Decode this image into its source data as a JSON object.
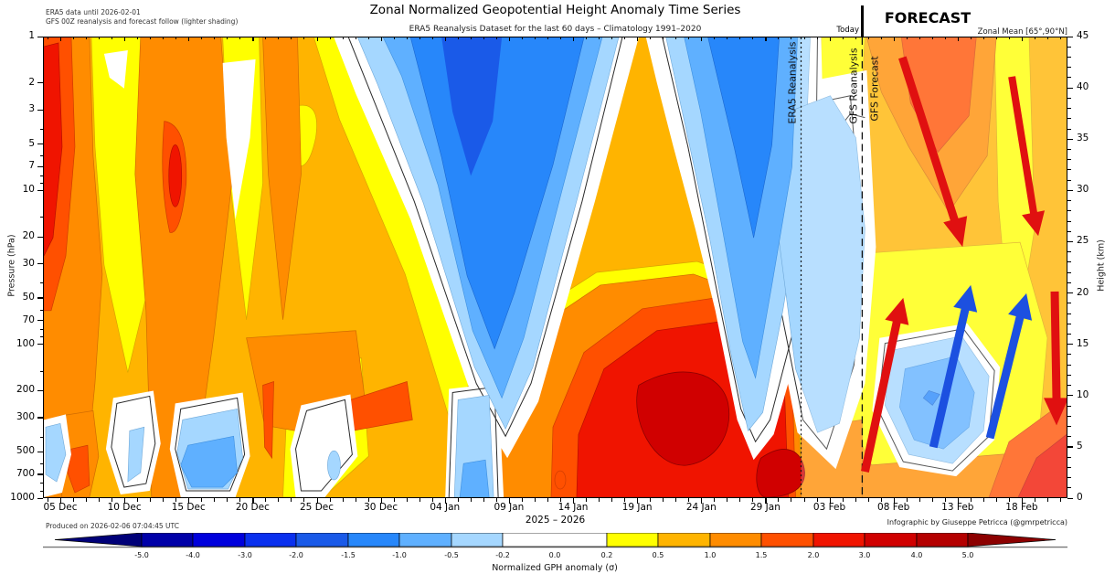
{
  "header": {
    "title": "Zonal Normalized Geopotential Height Anomaly Time Series",
    "subtitle": "ERA5 Reanalysis Dataset for the last 60 days – Climatology 1991–2020",
    "note1": "ERA5 data until 2026-02-01",
    "note2": "GFS 00Z reanalysis and forecast follow (lighter shading)",
    "forecast_label": "FORECAST",
    "today_label": "Today",
    "zonal_mean_label": "Zonal Mean [65°,90°N]"
  },
  "plot_annotations": {
    "era5_line_label": "ERA5 Reanalysis",
    "gfs_reanalysis_line_label": "GFS Reanalysis",
    "gfs_forecast_line_label": "GFS Forecast"
  },
  "axes": {
    "x_label_period": "2025 – 2026",
    "x_dates": [
      "05 Dec",
      "10 Dec",
      "15 Dec",
      "20 Dec",
      "25 Dec",
      "30 Dec",
      "04 Jan",
      "09 Jan",
      "14 Jan",
      "19 Jan",
      "24 Jan",
      "29 Jan",
      "03 Feb",
      "08 Feb",
      "13 Feb",
      "18 Feb"
    ],
    "pressure_label": "Pressure (hPa)",
    "pressure_ticks": [
      1,
      2,
      3,
      5,
      7,
      10,
      20,
      30,
      50,
      70,
      100,
      200,
      300,
      500,
      700,
      1000
    ],
    "height_label": "Height (km)",
    "height_ticks": [
      45,
      40,
      35,
      30,
      25,
      20,
      15,
      10,
      5,
      0
    ]
  },
  "footer": {
    "produced": "Produced on 2026-02-06 07:04:45 UTC",
    "credit": "Infographic by Giuseppe Petricca (@gmrpetricca)"
  },
  "colorbar": {
    "label": "Normalized GPH anomaly (σ)",
    "tick_labels": [
      "-5.0",
      "-4.0",
      "-3.0",
      "-2.0",
      "-1.5",
      "-1.0",
      "-0.5",
      "-0.2",
      "0.0",
      "0.2",
      "0.5",
      "1.0",
      "1.5",
      "2.0",
      "3.0",
      "4.0",
      "5.0"
    ],
    "segment_colors": [
      "#000078",
      "#0000A8",
      "#0000DC",
      "#0A30EE",
      "#1A5AE8",
      "#2787FA",
      "#5FB0FF",
      "#A5D7FF",
      "#FFFFFF",
      "#FFFF00",
      "#FFB400",
      "#FF8C00",
      "#FF5000",
      "#F01400",
      "#D00000",
      "#B40000",
      "#8C0000"
    ]
  },
  "chart_data": {
    "type": "filled_contour_timeseries",
    "title": "Zonal Normalized Geopotential Height Anomaly Time Series",
    "subtitle": "ERA5 Reanalysis Dataset for the last 60 days – Climatology 1991–2020",
    "x": [
      "05 Dec",
      "10 Dec",
      "15 Dec",
      "20 Dec",
      "25 Dec",
      "30 Dec",
      "04 Jan",
      "09 Jan",
      "14 Jan",
      "19 Jan",
      "24 Jan",
      "29 Jan",
      "03 Feb",
      "08 Feb",
      "13 Feb",
      "18 Feb"
    ],
    "x_period": "2025 – 2026",
    "y_pressure_hpa": [
      1,
      3,
      10,
      30,
      100,
      300,
      1000
    ],
    "y_axis_scale": "log",
    "y2_height_km_range": [
      0,
      45
    ],
    "value_units": "sigma (σ)",
    "contour_levels": [
      -5,
      -4,
      -3,
      -2,
      -1.5,
      -1,
      -0.5,
      -0.2,
      0.2,
      0.5,
      1,
      1.5,
      2,
      3,
      4,
      5
    ],
    "grid_sigma_estimates": [
      {
        "pressure_hpa": 1,
        "values": [
          2.2,
          0.5,
          1.2,
          0.3,
          0.8,
          -0.3,
          -1.8,
          -0.5,
          -0.8,
          -1.2,
          -1.5,
          -0.6,
          -0.3,
          1.0,
          2.2,
          0.6
        ]
      },
      {
        "pressure_hpa": 3,
        "values": [
          2.0,
          1.0,
          2.4,
          0.4,
          0.8,
          0.5,
          -1.2,
          -0.9,
          -0.7,
          -1.0,
          -1.0,
          -0.5,
          -0.2,
          0.9,
          1.6,
          0.7
        ]
      },
      {
        "pressure_hpa": 10,
        "values": [
          1.6,
          1.2,
          1.4,
          0.6,
          0.7,
          0.8,
          -0.6,
          -0.6,
          0.3,
          -0.5,
          -0.6,
          -0.4,
          0.2,
          0.8,
          1.2,
          0.8
        ]
      },
      {
        "pressure_hpa": 30,
        "values": [
          1.2,
          1.3,
          1.1,
          0.8,
          0.6,
          0.9,
          0.2,
          0.3,
          0.8,
          0.6,
          0.2,
          -0.2,
          0.4,
          0.8,
          0.9,
          0.8
        ]
      },
      {
        "pressure_hpa": 100,
        "values": [
          0.9,
          1.1,
          0.9,
          0.7,
          0.5,
          1.2,
          0.8,
          0.9,
          1.5,
          2.2,
          2.4,
          1.8,
          0.9,
          0.8,
          0.5,
          0.6
        ]
      },
      {
        "pressure_hpa": 300,
        "values": [
          -0.4,
          0.8,
          -0.3,
          0.5,
          0.4,
          1.4,
          0.6,
          0.8,
          1.8,
          2.8,
          3.2,
          2.6,
          1.2,
          0.6,
          -0.5,
          -0.8
        ]
      },
      {
        "pressure_hpa": 1000,
        "values": [
          -0.6,
          1.2,
          -0.8,
          0.3,
          0.5,
          1.6,
          -0.7,
          0.4,
          0.9,
          2.2,
          2.8,
          2.4,
          1.4,
          1.0,
          0.2,
          -0.3
        ]
      }
    ],
    "data_boundaries": {
      "era5_ends": "2026-02-01",
      "today": "just before 06 Feb",
      "forecast_region": "right of Today line, shown with lighter shading"
    },
    "arrows": [
      {
        "color_hex": "#E01010",
        "color": "red",
        "direction": "down",
        "region": "forecast upper stratosphere ~08-13 Feb, 43→26 km"
      },
      {
        "color_hex": "#E01010",
        "color": "red",
        "direction": "down",
        "region": "forecast upper stratosphere ~17-19 Feb, 41→27 km"
      },
      {
        "color_hex": "#E01010",
        "color": "red",
        "direction": "up",
        "region": "forecast troposphere ~06-08 Feb, 2→20 km"
      },
      {
        "color_hex": "#1C50E0",
        "color": "blue",
        "direction": "up",
        "region": "forecast troposphere ~12-14 Feb, 5→21 km"
      },
      {
        "color_hex": "#1C50E0",
        "color": "blue",
        "direction": "up",
        "region": "forecast troposphere ~16-18 Feb, 6→20 km"
      },
      {
        "color_hex": "#E01010",
        "color": "red",
        "direction": "down",
        "region": "forecast far right ~21 Feb, 20→7 km"
      }
    ],
    "legend_position": "bottom horizontal colorbar",
    "grid": false
  }
}
